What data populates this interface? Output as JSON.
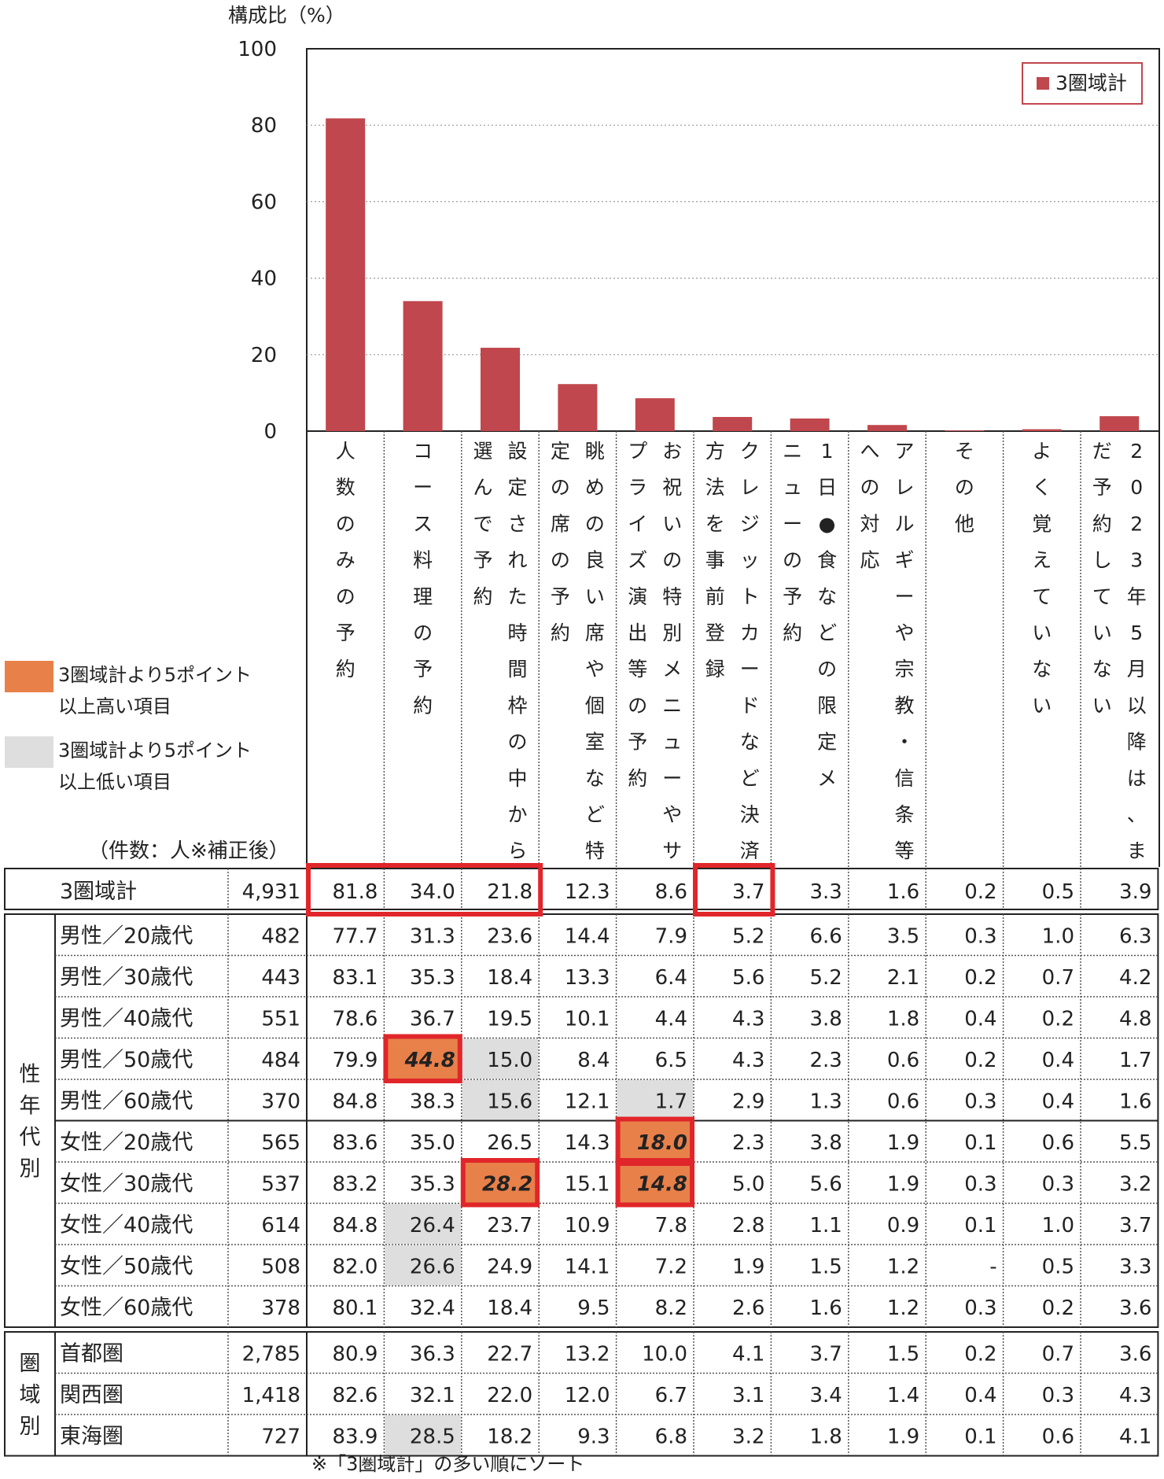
{
  "chart_data": {
    "type": "bar",
    "ylabel": "構成比（%）",
    "ylim": [
      0,
      100
    ],
    "yticks": [
      "0",
      "20",
      "40",
      "60",
      "80",
      "100"
    ],
    "grid": true,
    "legend": {
      "position": "top-right",
      "label": "3圏域計"
    },
    "categories": [
      "人数のみの予約",
      "コース料理の予約",
      "設定された時間枠の中から選んで予約",
      "眺めの良い席や個室など特定の席の予約",
      "お祝いの特別メニューやサプライズ演出等の予約",
      "クレジットカードなど決済方法を事前登録",
      "1日●食などの限定メニューの予約",
      "アレルギーや宗教・信条等への対応",
      "その他",
      "よく覚えていない",
      "2023年5月以降は、まだ予約していない"
    ],
    "series": [
      {
        "name": "3圏域計",
        "values": [
          81.8,
          34.0,
          21.8,
          12.3,
          8.6,
          3.7,
          3.3,
          1.6,
          0.2,
          0.5,
          3.9
        ]
      }
    ],
    "bar_color": "#c0474d"
  },
  "category_labels_vertical": [
    [
      "人数のみの予約"
    ],
    [
      "コース料理の予約"
    ],
    [
      "選んで予約",
      "設定された時間枠の中から"
    ],
    [
      "定の席の予約",
      "眺めの良い席や個室など特"
    ],
    [
      "プライズ演出等の予約",
      "お祝いの特別メニューやサ"
    ],
    [
      "方法を事前登録",
      "クレジットカードなど決済"
    ],
    [
      "ニューの予約",
      "1日●食などの限定メ"
    ],
    [
      "への対応",
      "アレルギーや宗教・信条等"
    ],
    [
      "その他"
    ],
    [
      "よく覚えていない"
    ],
    [
      "だ予約していない",
      "2023年5月以降は、ま"
    ]
  ],
  "legend_side": {
    "higher": {
      "label_line1": "3圏域計より5ポイント",
      "label_line2": "以上高い項目",
      "color": "#e8804a"
    },
    "lower": {
      "label_line1": "3圏域計より5ポイント",
      "label_line2": "以上低い項目",
      "color": "#dedede"
    }
  },
  "count_label": "（件数：人※補正後）",
  "table": {
    "total": {
      "label": "3圏域計",
      "n": "4,931",
      "values": [
        "81.8",
        "34.0",
        "21.8",
        "12.3",
        "8.6",
        "3.7",
        "3.3",
        "1.6",
        "0.2",
        "0.5",
        "3.9"
      ]
    },
    "groups": [
      {
        "label": "性年代別",
        "rows": [
          {
            "label": "男性／20歳代",
            "n": "482",
            "values": [
              "77.7",
              "31.3",
              "23.6",
              "14.4",
              "7.9",
              "5.2",
              "6.6",
              "3.5",
              "0.3",
              "1.0",
              "6.3"
            ]
          },
          {
            "label": "男性／30歳代",
            "n": "443",
            "values": [
              "83.1",
              "35.3",
              "18.4",
              "13.3",
              "6.4",
              "5.6",
              "5.2",
              "2.1",
              "0.2",
              "0.7",
              "4.2"
            ]
          },
          {
            "label": "男性／40歳代",
            "n": "551",
            "values": [
              "78.6",
              "36.7",
              "19.5",
              "10.1",
              "4.4",
              "4.3",
              "3.8",
              "1.8",
              "0.4",
              "0.2",
              "4.8"
            ]
          },
          {
            "label": "男性／50歳代",
            "n": "484",
            "values": [
              "79.9",
              "44.8",
              "15.0",
              "8.4",
              "6.5",
              "4.3",
              "2.3",
              "0.6",
              "0.2",
              "0.4",
              "1.7"
            ]
          },
          {
            "label": "男性／60歳代",
            "n": "370",
            "values": [
              "84.8",
              "38.3",
              "15.6",
              "12.1",
              "1.7",
              "2.9",
              "1.3",
              "0.6",
              "0.3",
              "0.4",
              "1.6"
            ]
          },
          {
            "label": "女性／20歳代",
            "n": "565",
            "values": [
              "83.6",
              "35.0",
              "26.5",
              "14.3",
              "18.0",
              "2.3",
              "3.8",
              "1.9",
              "0.1",
              "0.6",
              "5.5"
            ]
          },
          {
            "label": "女性／30歳代",
            "n": "537",
            "values": [
              "83.2",
              "35.3",
              "28.2",
              "15.1",
              "14.8",
              "5.0",
              "5.6",
              "1.9",
              "0.3",
              "0.3",
              "3.2"
            ]
          },
          {
            "label": "女性／40歳代",
            "n": "614",
            "values": [
              "84.8",
              "26.4",
              "23.7",
              "10.9",
              "7.8",
              "2.8",
              "1.1",
              "0.9",
              "0.1",
              "1.0",
              "3.7"
            ]
          },
          {
            "label": "女性／50歳代",
            "n": "508",
            "values": [
              "82.0",
              "26.6",
              "24.9",
              "14.1",
              "7.2",
              "1.9",
              "1.5",
              "1.2",
              "-",
              "0.5",
              "3.3"
            ]
          },
          {
            "label": "女性／60歳代",
            "n": "378",
            "values": [
              "80.1",
              "32.4",
              "18.4",
              "9.5",
              "8.2",
              "2.6",
              "1.6",
              "1.2",
              "0.3",
              "0.2",
              "3.6"
            ]
          }
        ]
      },
      {
        "label": "圏域別",
        "rows": [
          {
            "label": "首都圏",
            "n": "2,785",
            "values": [
              "80.9",
              "36.3",
              "22.7",
              "13.2",
              "10.0",
              "4.1",
              "3.7",
              "1.5",
              "0.2",
              "0.7",
              "3.6"
            ]
          },
          {
            "label": "関西圏",
            "n": "1,418",
            "values": [
              "82.6",
              "32.1",
              "22.0",
              "12.0",
              "6.7",
              "3.1",
              "3.4",
              "1.4",
              "0.4",
              "0.3",
              "4.3"
            ]
          },
          {
            "label": "東海圏",
            "n": "727",
            "values": [
              "83.9",
              "28.5",
              "18.2",
              "9.3",
              "6.8",
              "3.2",
              "1.8",
              "1.9",
              "0.1",
              "0.6",
              "4.1"
            ]
          }
        ]
      }
    ],
    "high_cells": [
      {
        "group": 0,
        "row": 3,
        "col": 1
      },
      {
        "group": 0,
        "row": 5,
        "col": 4
      },
      {
        "group": 0,
        "row": 6,
        "col": 2
      },
      {
        "group": 0,
        "row": 6,
        "col": 4
      }
    ],
    "low_cells": [
      {
        "group": 0,
        "row": 3,
        "col": 2
      },
      {
        "group": 0,
        "row": 4,
        "col": 2
      },
      {
        "group": 0,
        "row": 4,
        "col": 4
      },
      {
        "group": 0,
        "row": 7,
        "col": 1
      },
      {
        "group": 0,
        "row": 8,
        "col": 1
      },
      {
        "group": 1,
        "row": 2,
        "col": 1
      }
    ]
  },
  "footnote": "※「3圏域計」の多い順にソート"
}
